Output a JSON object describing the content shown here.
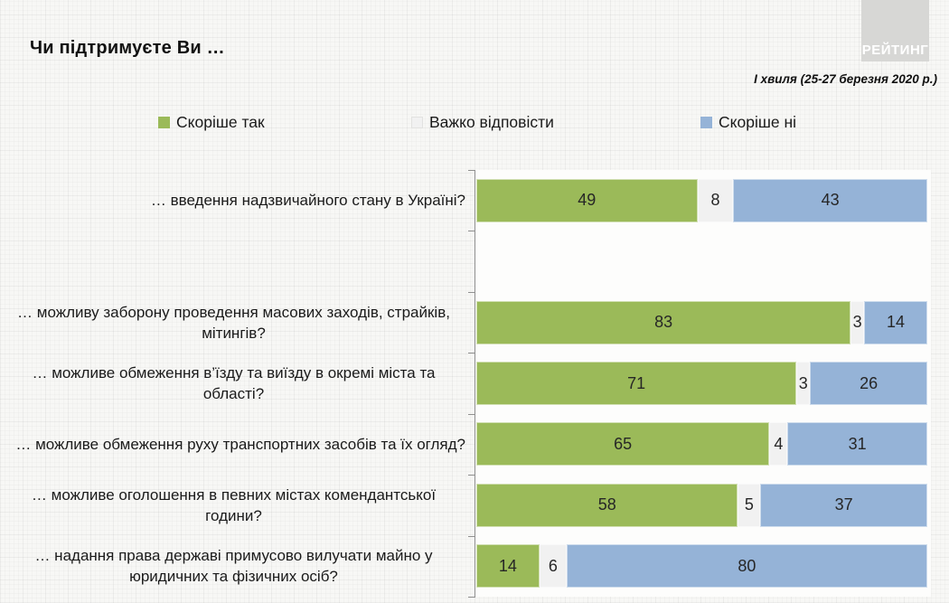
{
  "title": "Чи підтримуєте Ви …",
  "subtitle": "І хвиля (25-27 березня 2020 р.)",
  "logo": {
    "text": "РЕЙТИНГ",
    "bg_color": "#d7d7d5"
  },
  "legend": [
    {
      "label": "Скоріше так",
      "color": "#9bba59"
    },
    {
      "label": "Важко відповісти",
      "color": "#f1f1f1"
    },
    {
      "label": "Скоріше ні",
      "color": "#95b3d7"
    }
  ],
  "chart_data": {
    "type": "bar",
    "orientation": "horizontal",
    "stacked": true,
    "xlim": [
      0,
      100
    ],
    "grid": false,
    "legend_position": "top",
    "title": "Чи підтримуєте Ви …",
    "subtitle": "І хвиля (25-27 березня 2020 р.)",
    "categories": [
      "… введення надзвичайного стану в Україні?",
      "… можливу заборону проведення масових заходів, страйків, мітингів?",
      "… можливе обмеження в’їзду та виїзду в окремі міста та області?",
      "… можливе обмеження руху транспортних засобів та їх огляд?",
      "… можливе оголошення в певних містах комендантської години?",
      "… надання права державі примусово вилучати майно у юридичних та фізичних осіб?"
    ],
    "series": [
      {
        "name": "Скоріше так",
        "color": "#9bba59",
        "values": [
          49,
          83,
          71,
          65,
          58,
          14
        ]
      },
      {
        "name": "Важко відповісти",
        "color": "#f1f1f1",
        "values": [
          8,
          3,
          3,
          4,
          5,
          6
        ]
      },
      {
        "name": "Скоріше ні",
        "color": "#95b3d7",
        "values": [
          43,
          14,
          26,
          31,
          37,
          80
        ]
      }
    ],
    "layout_note": "empty band between first and second category"
  }
}
